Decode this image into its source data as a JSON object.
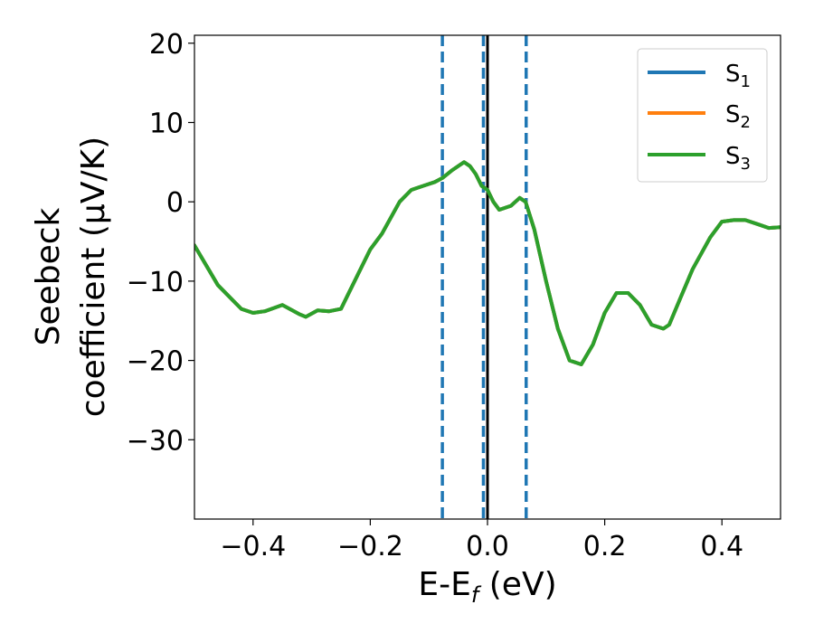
{
  "chart_data": {
    "type": "line",
    "xlabel": "E-E",
    "xlabel_sub": "f",
    "xlabel_unit": " (eV)",
    "ylabel_line1": "Seebeck",
    "ylabel_line2": "coefficient  (μV/K)",
    "xlim": [
      -0.5,
      0.5
    ],
    "ylim": [
      -40,
      21
    ],
    "xticks": [
      -0.4,
      -0.2,
      0.0,
      0.2,
      0.4
    ],
    "xtick_labels": [
      "−0.4",
      "−0.2",
      "0.0",
      "0.2",
      "0.4"
    ],
    "yticks": [
      20,
      10,
      0,
      -10,
      -20,
      -30
    ],
    "ytick_labels": [
      "20",
      "10",
      "0",
      "−10",
      "−20",
      "−30"
    ],
    "grid": false,
    "legend_position": "top-right",
    "series": [
      {
        "name": "S",
        "name_sub": "1",
        "color": "#1f77b4",
        "x": [
          -0.5,
          -0.46,
          -0.42,
          -0.4,
          -0.38,
          -0.35,
          -0.32,
          -0.31,
          -0.29,
          -0.27,
          -0.25,
          -0.22,
          -0.2,
          -0.18,
          -0.15,
          -0.13,
          -0.11,
          -0.09,
          -0.077,
          -0.06,
          -0.04,
          -0.03,
          -0.02,
          -0.01,
          0.0,
          0.01,
          0.02,
          0.04,
          0.055,
          0.065,
          0.08,
          0.1,
          0.12,
          0.14,
          0.16,
          0.18,
          0.2,
          0.22,
          0.24,
          0.26,
          0.28,
          0.3,
          0.31,
          0.33,
          0.35,
          0.38,
          0.4,
          0.42,
          0.44,
          0.46,
          0.48,
          0.5
        ],
        "y": [
          -5.5,
          -10.5,
          -13.5,
          -14.0,
          -13.8,
          -13.0,
          -14.2,
          -14.5,
          -13.7,
          -13.8,
          -13.5,
          -9.0,
          -6.0,
          -4.0,
          0.0,
          1.5,
          2.0,
          2.5,
          3.0,
          4.0,
          5.0,
          4.5,
          3.5,
          2.0,
          1.5,
          0.0,
          -1.0,
          -0.5,
          0.5,
          0.0,
          -3.5,
          -10.0,
          -16.0,
          -20.0,
          -20.5,
          -18.0,
          -14.0,
          -11.5,
          -11.5,
          -13.0,
          -15.5,
          -16.0,
          -15.5,
          -12.0,
          -8.5,
          -4.5,
          -2.5,
          -2.3,
          -2.3,
          -2.8,
          -3.3,
          -3.2
        ]
      },
      {
        "name": "S",
        "name_sub": "2",
        "color": "#ff7f0e",
        "x": [
          -0.5,
          -0.46,
          -0.42,
          -0.4,
          -0.38,
          -0.35,
          -0.32,
          -0.31,
          -0.29,
          -0.27,
          -0.25,
          -0.22,
          -0.2,
          -0.18,
          -0.15,
          -0.13,
          -0.11,
          -0.09,
          -0.077,
          -0.06,
          -0.04,
          -0.03,
          -0.02,
          -0.01,
          0.0,
          0.01,
          0.02,
          0.04,
          0.055,
          0.065,
          0.08,
          0.1,
          0.12,
          0.14,
          0.16,
          0.18,
          0.2,
          0.22,
          0.24,
          0.26,
          0.28,
          0.3,
          0.31,
          0.33,
          0.35,
          0.38,
          0.4,
          0.42,
          0.44,
          0.46,
          0.48,
          0.5
        ],
        "y": [
          -5.5,
          -10.5,
          -13.5,
          -14.0,
          -13.8,
          -13.0,
          -14.2,
          -14.5,
          -13.7,
          -13.8,
          -13.5,
          -9.0,
          -6.0,
          -4.0,
          0.0,
          1.5,
          2.0,
          2.5,
          3.0,
          4.0,
          5.0,
          4.5,
          3.5,
          2.0,
          1.5,
          0.0,
          -1.0,
          -0.5,
          0.5,
          0.0,
          -3.5,
          -10.0,
          -16.0,
          -20.0,
          -20.5,
          -18.0,
          -14.0,
          -11.5,
          -11.5,
          -13.0,
          -15.5,
          -16.0,
          -15.5,
          -12.0,
          -8.5,
          -4.5,
          -2.5,
          -2.3,
          -2.3,
          -2.8,
          -3.3,
          -3.2
        ]
      },
      {
        "name": "S",
        "name_sub": "3",
        "color": "#2ca02c",
        "x": [
          -0.5,
          -0.46,
          -0.42,
          -0.4,
          -0.38,
          -0.35,
          -0.32,
          -0.31,
          -0.29,
          -0.27,
          -0.25,
          -0.22,
          -0.2,
          -0.18,
          -0.15,
          -0.13,
          -0.11,
          -0.09,
          -0.077,
          -0.06,
          -0.04,
          -0.03,
          -0.02,
          -0.01,
          0.0,
          0.01,
          0.02,
          0.04,
          0.055,
          0.065,
          0.08,
          0.1,
          0.12,
          0.14,
          0.16,
          0.18,
          0.2,
          0.22,
          0.24,
          0.26,
          0.28,
          0.3,
          0.31,
          0.33,
          0.35,
          0.38,
          0.4,
          0.42,
          0.44,
          0.46,
          0.48,
          0.5
        ],
        "y": [
          -5.5,
          -10.5,
          -13.5,
          -14.0,
          -13.8,
          -13.0,
          -14.2,
          -14.5,
          -13.7,
          -13.8,
          -13.5,
          -9.0,
          -6.0,
          -4.0,
          0.0,
          1.5,
          2.0,
          2.5,
          3.0,
          4.0,
          5.0,
          4.5,
          3.5,
          2.0,
          1.5,
          0.0,
          -1.0,
          -0.5,
          0.5,
          0.0,
          -3.5,
          -10.0,
          -16.0,
          -20.0,
          -20.5,
          -18.0,
          -14.0,
          -11.5,
          -11.5,
          -13.0,
          -15.5,
          -16.0,
          -15.5,
          -12.0,
          -8.5,
          -4.5,
          -2.5,
          -2.3,
          -2.3,
          -2.8,
          -3.3,
          -3.2
        ]
      }
    ],
    "vlines": [
      {
        "x": -0.077,
        "style": "dashed",
        "color": "#1f77b4"
      },
      {
        "x": -0.007,
        "style": "dashed",
        "color": "#1f77b4"
      },
      {
        "x": 0.066,
        "style": "dashed",
        "color": "#1f77b4"
      },
      {
        "x": 0.0,
        "style": "solid",
        "color": "#000000"
      }
    ]
  }
}
